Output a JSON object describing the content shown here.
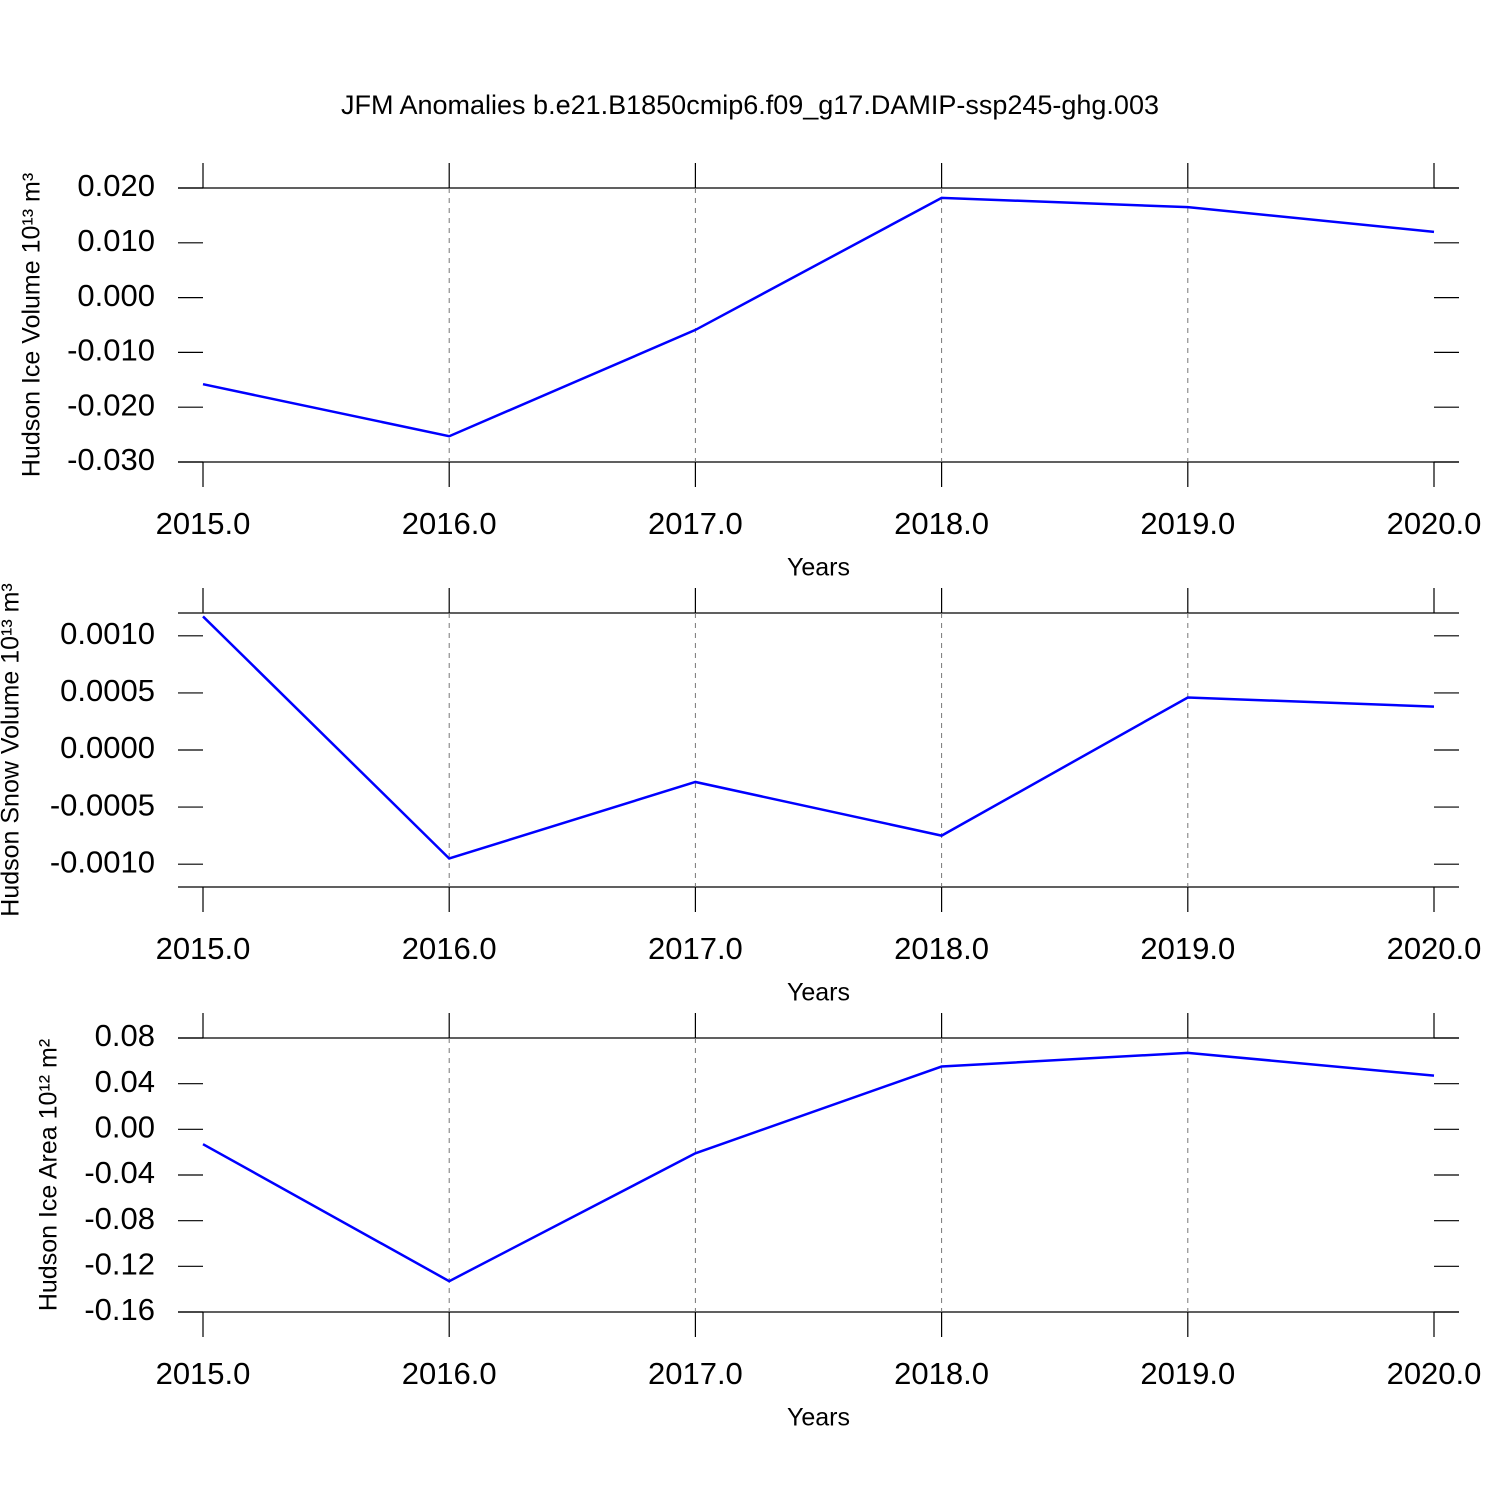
{
  "title": "JFM Anomalies b.e21.B1850cmip6.f09_g17.DAMIP-ssp245-ghg.003",
  "chart_data": [
    {
      "type": "line",
      "xlabel": "Years",
      "ylabel": "Hudson Ice Volume 10¹³ m³",
      "x": [
        2015,
        2016,
        2017,
        2018,
        2019,
        2020
      ],
      "series": [
        {
          "color": "#0000ff",
          "values": [
            -0.0158,
            -0.0253,
            -0.0059,
            0.0182,
            0.0165,
            0.012
          ]
        }
      ],
      "xlim": [
        2015,
        2020
      ],
      "xticks": [
        {
          "value": 2015,
          "label": "2015.0"
        },
        {
          "value": 2016,
          "label": "2016.0"
        },
        {
          "value": 2017,
          "label": "2017.0"
        },
        {
          "value": 2018,
          "label": "2018.0"
        },
        {
          "value": 2019,
          "label": "2019.0"
        },
        {
          "value": 2020,
          "label": "2020.0"
        }
      ],
      "ylim": [
        -0.03,
        0.02
      ],
      "yticks": [
        {
          "value": 0.02,
          "label": "0.020"
        },
        {
          "value": 0.01,
          "label": "0.010"
        },
        {
          "value": 0,
          "label": "0.000"
        },
        {
          "value": -0.01,
          "label": "-0.010"
        },
        {
          "value": -0.02,
          "label": "-0.020"
        },
        {
          "value": -0.03,
          "label": "-0.030"
        }
      ],
      "grid": true
    },
    {
      "type": "line",
      "xlabel": "Years",
      "ylabel": "Hudson Snow Volume 10¹³ m³",
      "x": [
        2015,
        2016,
        2017,
        2018,
        2019,
        2020
      ],
      "series": [
        {
          "color": "#0000ff",
          "values": [
            0.00117,
            -0.00095,
            -0.00028,
            -0.00075,
            0.00046,
            0.00038
          ]
        }
      ],
      "xlim": [
        2015,
        2020
      ],
      "xticks": [
        {
          "value": 2015,
          "label": "2015.0"
        },
        {
          "value": 2016,
          "label": "2016.0"
        },
        {
          "value": 2017,
          "label": "2017.0"
        },
        {
          "value": 2018,
          "label": "2018.0"
        },
        {
          "value": 2019,
          "label": "2019.0"
        },
        {
          "value": 2020,
          "label": "2020.0"
        }
      ],
      "ylim": [
        -0.0012,
        0.0012
      ],
      "yticks": [
        {
          "value": 0.001,
          "label": "0.0010"
        },
        {
          "value": 0.0005,
          "label": "0.0005"
        },
        {
          "value": 0,
          "label": "0.0000"
        },
        {
          "value": -0.0005,
          "label": "-0.0005"
        },
        {
          "value": -0.001,
          "label": "-0.0010"
        }
      ],
      "grid": true
    },
    {
      "type": "line",
      "xlabel": "Years",
      "ylabel": "Hudson Ice Area 10¹² m²",
      "x": [
        2015,
        2016,
        2017,
        2018,
        2019,
        2020
      ],
      "series": [
        {
          "color": "#0000ff",
          "values": [
            -0.013,
            -0.133,
            -0.021,
            0.055,
            0.067,
            0.047
          ]
        }
      ],
      "xlim": [
        2015,
        2020
      ],
      "xticks": [
        {
          "value": 2015,
          "label": "2015.0"
        },
        {
          "value": 2016,
          "label": "2016.0"
        },
        {
          "value": 2017,
          "label": "2017.0"
        },
        {
          "value": 2018,
          "label": "2018.0"
        },
        {
          "value": 2019,
          "label": "2019.0"
        },
        {
          "value": 2020,
          "label": "2020.0"
        }
      ],
      "ylim": [
        -0.16,
        0.08
      ],
      "yticks": [
        {
          "value": 0.08,
          "label": "0.08"
        },
        {
          "value": 0.04,
          "label": "0.04"
        },
        {
          "value": 0,
          "label": "0.00"
        },
        {
          "value": -0.04,
          "label": "-0.04"
        },
        {
          "value": -0.08,
          "label": "-0.08"
        },
        {
          "value": -0.12,
          "label": "-0.12"
        },
        {
          "value": -0.16,
          "label": "-0.16"
        }
      ],
      "grid": true
    }
  ]
}
